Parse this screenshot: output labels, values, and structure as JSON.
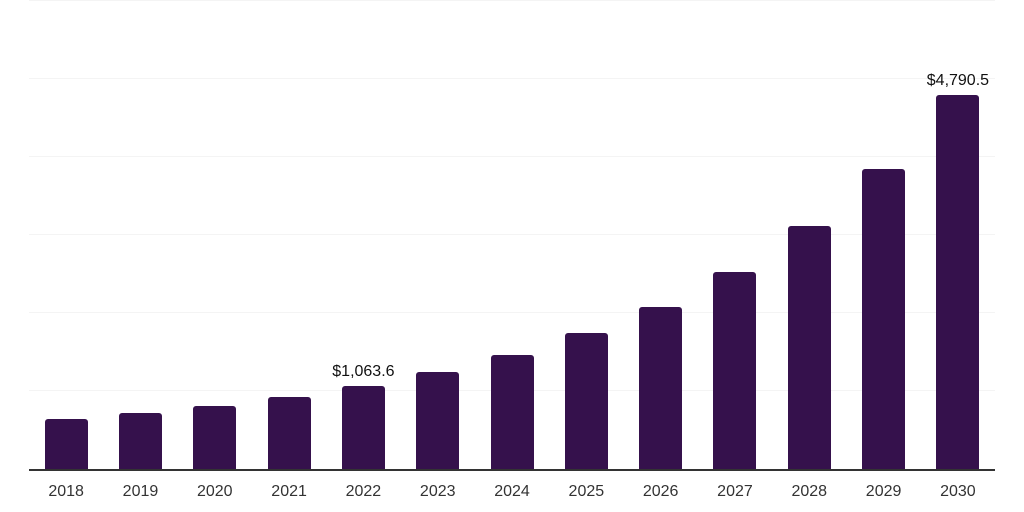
{
  "chart_data": {
    "type": "bar",
    "title": "",
    "xlabel": "",
    "ylabel": "",
    "categories": [
      "2018",
      "2019",
      "2020",
      "2021",
      "2022",
      "2023",
      "2024",
      "2025",
      "2026",
      "2027",
      "2028",
      "2029",
      "2030"
    ],
    "values": [
      640,
      715,
      810,
      920,
      1063.6,
      1245,
      1460,
      1740,
      2080,
      2530,
      3110,
      3840,
      4790.5
    ],
    "data_labels": [
      "",
      "",
      "",
      "",
      "$1,063.6",
      "",
      "",
      "",
      "",
      "",
      "",
      "",
      "$4,790.5"
    ],
    "ylim": [
      0,
      6000
    ],
    "gridline_step": 1000,
    "grid": true,
    "legend_position": "none",
    "colors": {
      "bar": "#35114C",
      "gridline": "#f4f4f4",
      "axis_line": "#333333",
      "tick_label": "#333333",
      "data_label": "#111111",
      "background": "#ffffff"
    }
  }
}
